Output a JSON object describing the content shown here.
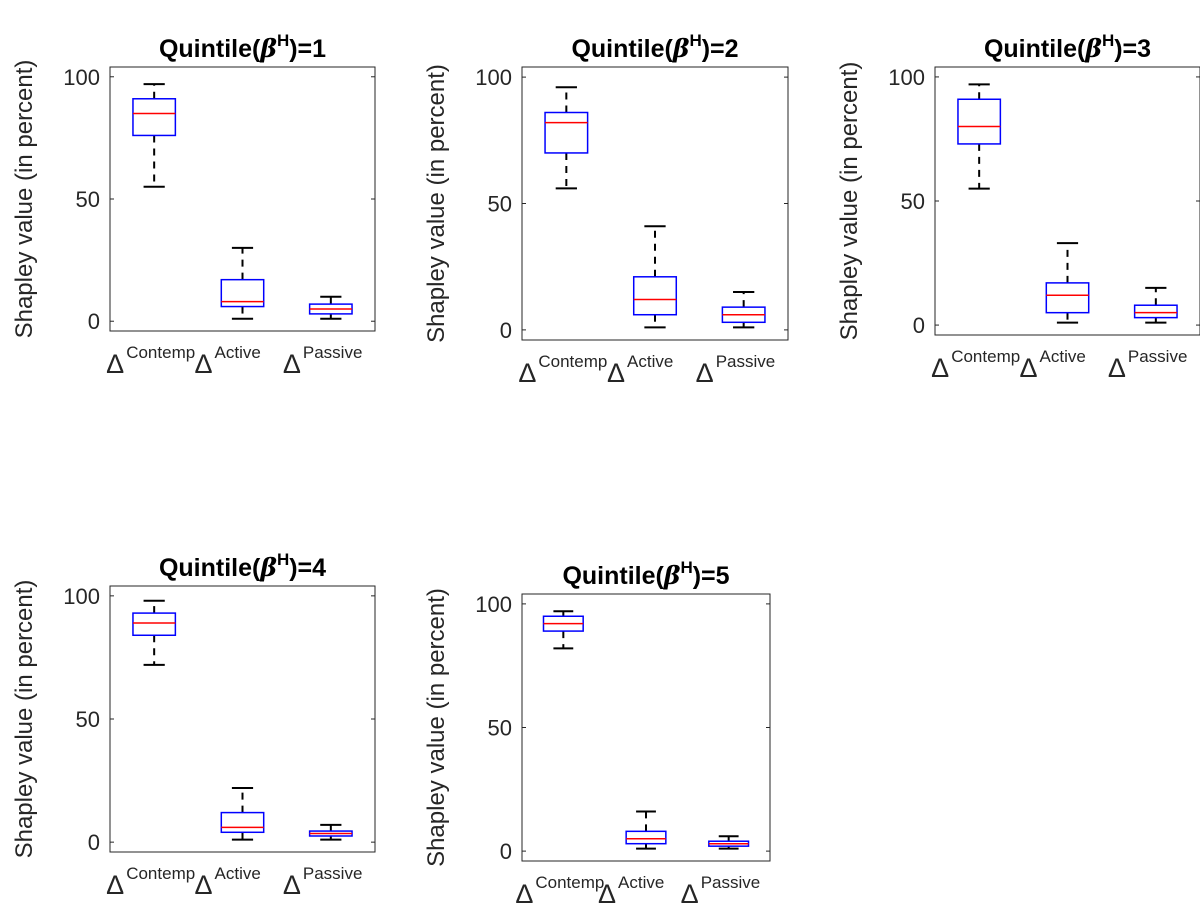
{
  "chart_data": [
    {
      "type": "box",
      "title": {
        "prefix": "Quintile(",
        "symbol": "β",
        "superscript": "H",
        "suffix": ")=1"
      },
      "ylabel": "Shapley value (in percent)",
      "ylim": [
        0,
        100
      ],
      "yticks": [
        "0",
        "50",
        "100"
      ],
      "category_symbol": "Δ",
      "categories": [
        "Contemp",
        "Active",
        "Passive"
      ],
      "boxes": [
        {
          "whisker_low": 55,
          "q1": 76,
          "median": 85,
          "q3": 91,
          "whisker_high": 97
        },
        {
          "whisker_low": 1,
          "q1": 6,
          "median": 8,
          "q3": 17,
          "whisker_high": 30
        },
        {
          "whisker_low": 1,
          "q1": 3,
          "median": 5,
          "q3": 7,
          "whisker_high": 10
        }
      ]
    },
    {
      "type": "box",
      "title": {
        "prefix": "Quintile(",
        "symbol": "β",
        "superscript": "H",
        "suffix": ")=2"
      },
      "ylabel": "Shapley value (in percent)",
      "ylim": [
        0,
        100
      ],
      "yticks": [
        "0",
        "50",
        "100"
      ],
      "category_symbol": "Δ",
      "categories": [
        "Contemp",
        "Active",
        "Passive"
      ],
      "boxes": [
        {
          "whisker_low": 56,
          "q1": 70,
          "median": 82,
          "q3": 86,
          "whisker_high": 96
        },
        {
          "whisker_low": 1,
          "q1": 6,
          "median": 12,
          "q3": 21,
          "whisker_high": 41
        },
        {
          "whisker_low": 1,
          "q1": 3,
          "median": 6,
          "q3": 9,
          "whisker_high": 15
        }
      ]
    },
    {
      "type": "box",
      "title": {
        "prefix": "Quintile(",
        "symbol": "β",
        "superscript": "H",
        "suffix": ")=3"
      },
      "ylabel": "Shapley value (in percent)",
      "ylim": [
        0,
        100
      ],
      "yticks": [
        "0",
        "50",
        "100"
      ],
      "category_symbol": "Δ",
      "categories": [
        "Contemp",
        "Active",
        "Passive"
      ],
      "boxes": [
        {
          "whisker_low": 55,
          "q1": 73,
          "median": 80,
          "q3": 91,
          "whisker_high": 97
        },
        {
          "whisker_low": 1,
          "q1": 5,
          "median": 12,
          "q3": 17,
          "whisker_high": 33
        },
        {
          "whisker_low": 1,
          "q1": 3,
          "median": 5,
          "q3": 8,
          "whisker_high": 15
        }
      ]
    },
    {
      "type": "box",
      "title": {
        "prefix": "Quintile(",
        "symbol": "β",
        "superscript": "H",
        "suffix": ")=4"
      },
      "ylabel": "Shapley value (in percent)",
      "ylim": [
        0,
        100
      ],
      "yticks": [
        "0",
        "50",
        "100"
      ],
      "category_symbol": "Δ",
      "categories": [
        "Contemp",
        "Active",
        "Passive"
      ],
      "boxes": [
        {
          "whisker_low": 72,
          "q1": 84,
          "median": 89,
          "q3": 93,
          "whisker_high": 98
        },
        {
          "whisker_low": 1,
          "q1": 4,
          "median": 6,
          "q3": 12,
          "whisker_high": 22
        },
        {
          "whisker_low": 1,
          "q1": 2.5,
          "median": 3.5,
          "q3": 4.5,
          "whisker_high": 7
        }
      ]
    },
    {
      "type": "box",
      "title": {
        "prefix": "Quintile(",
        "symbol": "β",
        "superscript": "H",
        "suffix": ")=5"
      },
      "ylabel": "Shapley value (in percent)",
      "ylim": [
        0,
        100
      ],
      "yticks": [
        "0",
        "50",
        "100"
      ],
      "category_symbol": "Δ",
      "categories": [
        "Contemp",
        "Active",
        "Passive"
      ],
      "boxes": [
        {
          "whisker_low": 82,
          "q1": 89,
          "median": 92,
          "q3": 95,
          "whisker_high": 97
        },
        {
          "whisker_low": 1,
          "q1": 3,
          "median": 5,
          "q3": 8,
          "whisker_high": 16
        },
        {
          "whisker_low": 1,
          "q1": 2,
          "median": 3,
          "q3": 4,
          "whisker_high": 6
        }
      ]
    }
  ],
  "colors": {
    "box": "#0000ff",
    "median": "#ff0000",
    "whisker": "#000000",
    "axis": "#262626"
  }
}
